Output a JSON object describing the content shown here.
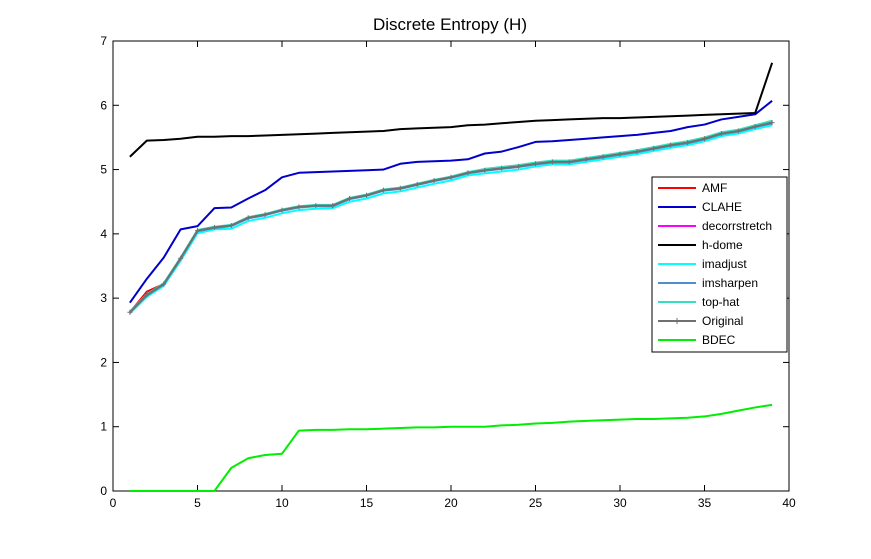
{
  "chart_data": {
    "type": "line",
    "title": "Discrete Entropy (H)",
    "xlabel": "",
    "ylabel": "",
    "xlim": [
      0,
      40
    ],
    "ylim": [
      0,
      7
    ],
    "xticks": [
      0,
      5,
      10,
      15,
      20,
      25,
      30,
      35,
      40
    ],
    "yticks": [
      0,
      1,
      2,
      3,
      4,
      5,
      6,
      7
    ],
    "grid": false,
    "legend_position": "right",
    "x": [
      1,
      2,
      3,
      4,
      5,
      6,
      7,
      8,
      9,
      10,
      11,
      12,
      13,
      14,
      15,
      16,
      17,
      18,
      19,
      20,
      21,
      22,
      23,
      24,
      25,
      26,
      27,
      28,
      29,
      30,
      31,
      32,
      33,
      34,
      35,
      36,
      37,
      38,
      39
    ],
    "series": [
      {
        "name": "AMF",
        "color": "#ff0000",
        "marker": "",
        "values": [
          2.78,
          3.1,
          3.22,
          3.62,
          4.05,
          4.1,
          4.13,
          4.25,
          4.3,
          4.37,
          4.42,
          4.44,
          4.44,
          4.55,
          4.6,
          4.68,
          4.71,
          4.77,
          4.83,
          4.88,
          4.95,
          4.99,
          5.02,
          5.05,
          5.09,
          5.12,
          5.12,
          5.16,
          5.2,
          5.24,
          5.28,
          5.33,
          5.38,
          5.42,
          5.48,
          5.56,
          5.6,
          5.67,
          5.73
        ]
      },
      {
        "name": "CLAHE",
        "color": "#0000cc",
        "marker": "",
        "values": [
          2.93,
          3.3,
          3.63,
          4.07,
          4.12,
          4.4,
          4.41,
          4.55,
          4.68,
          4.88,
          4.95,
          4.96,
          4.97,
          4.98,
          4.99,
          5.0,
          5.09,
          5.12,
          5.13,
          5.14,
          5.16,
          5.25,
          5.28,
          5.35,
          5.43,
          5.44,
          5.46,
          5.48,
          5.5,
          5.52,
          5.54,
          5.57,
          5.6,
          5.66,
          5.7,
          5.78,
          5.82,
          5.86,
          6.07
        ]
      },
      {
        "name": "decorrstretch",
        "color": "#ff00ff",
        "marker": "",
        "values": [
          2.78,
          3.05,
          3.22,
          3.62,
          4.05,
          4.1,
          4.13,
          4.25,
          4.3,
          4.37,
          4.42,
          4.44,
          4.44,
          4.55,
          4.6,
          4.68,
          4.71,
          4.77,
          4.83,
          4.88,
          4.95,
          4.99,
          5.02,
          5.05,
          5.09,
          5.12,
          5.12,
          5.16,
          5.2,
          5.24,
          5.28,
          5.33,
          5.38,
          5.42,
          5.48,
          5.56,
          5.6,
          5.67,
          5.73
        ]
      },
      {
        "name": "h-dome",
        "color": "#000000",
        "marker": "",
        "values": [
          5.2,
          5.45,
          5.46,
          5.48,
          5.51,
          5.51,
          5.52,
          5.52,
          5.53,
          5.54,
          5.55,
          5.56,
          5.57,
          5.58,
          5.59,
          5.6,
          5.63,
          5.64,
          5.65,
          5.66,
          5.69,
          5.7,
          5.72,
          5.74,
          5.76,
          5.77,
          5.78,
          5.79,
          5.8,
          5.8,
          5.81,
          5.82,
          5.83,
          5.84,
          5.85,
          5.86,
          5.87,
          5.88,
          6.66
        ]
      },
      {
        "name": "imadjust",
        "color": "#00ffff",
        "marker": "",
        "values": [
          2.76,
          3.02,
          3.19,
          3.58,
          4.01,
          4.07,
          4.08,
          4.2,
          4.25,
          4.32,
          4.37,
          4.39,
          4.4,
          4.5,
          4.55,
          4.63,
          4.66,
          4.72,
          4.78,
          4.83,
          4.91,
          4.94,
          4.97,
          5.0,
          5.05,
          5.08,
          5.08,
          5.12,
          5.16,
          5.2,
          5.24,
          5.29,
          5.34,
          5.38,
          5.44,
          5.52,
          5.56,
          5.63,
          5.69
        ]
      },
      {
        "name": "imsharpen",
        "color": "#4f8fcf",
        "marker": "",
        "values": [
          2.78,
          3.04,
          3.21,
          3.61,
          4.04,
          4.09,
          4.12,
          4.24,
          4.29,
          4.36,
          4.41,
          4.43,
          4.43,
          4.54,
          4.59,
          4.67,
          4.7,
          4.76,
          4.82,
          4.87,
          4.94,
          4.98,
          5.01,
          5.04,
          5.08,
          5.11,
          5.11,
          5.15,
          5.19,
          5.23,
          5.27,
          5.32,
          5.37,
          5.41,
          5.47,
          5.55,
          5.59,
          5.66,
          5.72
        ]
      },
      {
        "name": "top-hat",
        "color": "#33e0c0",
        "marker": "",
        "values": [
          2.79,
          3.06,
          3.23,
          3.63,
          4.06,
          4.11,
          4.14,
          4.26,
          4.31,
          4.38,
          4.43,
          4.45,
          4.45,
          4.56,
          4.61,
          4.69,
          4.72,
          4.78,
          4.84,
          4.89,
          4.96,
          5.01,
          5.04,
          5.07,
          5.11,
          5.14,
          5.14,
          5.18,
          5.22,
          5.26,
          5.3,
          5.35,
          5.4,
          5.44,
          5.5,
          5.58,
          5.62,
          5.69,
          5.76
        ]
      },
      {
        "name": "Original",
        "color": "#707070",
        "marker": "plus",
        "values": [
          2.78,
          3.05,
          3.22,
          3.62,
          4.05,
          4.1,
          4.13,
          4.25,
          4.3,
          4.37,
          4.42,
          4.44,
          4.44,
          4.55,
          4.6,
          4.68,
          4.71,
          4.77,
          4.83,
          4.88,
          4.95,
          4.99,
          5.02,
          5.05,
          5.09,
          5.12,
          5.12,
          5.16,
          5.2,
          5.24,
          5.28,
          5.33,
          5.38,
          5.42,
          5.48,
          5.56,
          5.6,
          5.67,
          5.73
        ]
      },
      {
        "name": "BDEC",
        "color": "#00ee00",
        "marker": "",
        "values": [
          0.0,
          0.0,
          0.0,
          0.0,
          0.0,
          0.0,
          0.36,
          0.51,
          0.56,
          0.58,
          0.94,
          0.95,
          0.95,
          0.96,
          0.96,
          0.97,
          0.98,
          0.99,
          0.99,
          1.0,
          1.0,
          1.0,
          1.02,
          1.03,
          1.05,
          1.06,
          1.08,
          1.09,
          1.1,
          1.11,
          1.12,
          1.12,
          1.13,
          1.14,
          1.16,
          1.2,
          1.25,
          1.3,
          1.34
        ]
      }
    ]
  }
}
